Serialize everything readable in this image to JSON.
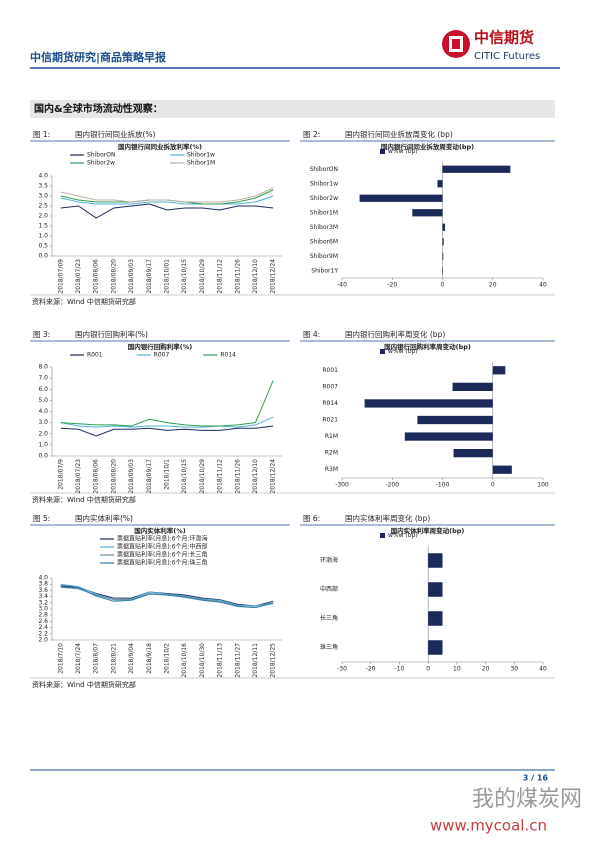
{
  "header": {
    "title": "中信期货研究|商品策略早报",
    "logo_cn": "中信期货",
    "logo_en": "CITIC Futures"
  },
  "section_title": "国内&全球市场流动性观察：",
  "sources": [
    "资料来源：Wind  中信期货研究部",
    "资料来源：Wind  中信期货研究部",
    "资料来源：Wind  中信期货研究部"
  ],
  "page_number": "3 / 16",
  "watermark": {
    "name": "我的煤炭网",
    "url": "www.mycoal.cn"
  },
  "chart_data": [
    {
      "type": "line",
      "figure": "图 1:",
      "caption": "国内银行间同业拆放(%)",
      "title": "国内银行间同业拆放利率(%)",
      "categories": [
        "2018/07/09",
        "2018/07/23",
        "2018/08/06",
        "2018/08/20",
        "2018/09/03",
        "2018/09/17",
        "2018/10/01",
        "2018/10/15",
        "2018/10/29",
        "2018/11/12",
        "2018/11/26",
        "2018/12/10",
        "2018/12/24"
      ],
      "series": [
        {
          "name": "ShiborON",
          "color": "#1c2a5b",
          "values": [
            2.4,
            2.5,
            1.9,
            2.4,
            2.5,
            2.6,
            2.3,
            2.4,
            2.4,
            2.3,
            2.5,
            2.5,
            2.4
          ]
        },
        {
          "name": "Shibor1w",
          "color": "#4fb3d9",
          "values": [
            2.9,
            2.7,
            2.6,
            2.6,
            2.6,
            2.7,
            2.7,
            2.6,
            2.6,
            2.6,
            2.6,
            2.7,
            3.0
          ]
        },
        {
          "name": "Shibor2w",
          "color": "#2e9e4f",
          "values": [
            3.0,
            2.8,
            2.7,
            2.7,
            2.7,
            2.8,
            2.8,
            2.7,
            2.6,
            2.6,
            2.7,
            2.9,
            3.3
          ]
        },
        {
          "name": "Shibor1M",
          "color": "#b8b0a0",
          "values": [
            3.2,
            3.0,
            2.8,
            2.8,
            2.7,
            2.8,
            2.8,
            2.7,
            2.7,
            2.7,
            2.8,
            3.0,
            3.4
          ]
        }
      ],
      "ylim": [
        0,
        4
      ],
      "yticks": [
        {
          "value": 0,
          "label": "0.0"
        },
        0.5,
        {
          "value": 1,
          "label": "1.0"
        },
        1.5,
        {
          "value": 2,
          "label": "2.0"
        },
        2.5,
        {
          "value": 3,
          "label": "3.0"
        },
        3.5,
        {
          "value": 4,
          "label": "4.0"
        }
      ]
    },
    {
      "type": "bar",
      "horizontal": true,
      "figure": "图 2:",
      "caption": "国内银行间同业拆放周变化 (bp)",
      "title": "国内银行间同业拆放周变动(bp)",
      "legend": "w%w (bp)",
      "color": "#1c2a5b",
      "categories": [
        "ShiborON",
        "Shibor1w",
        "Shibor2w",
        "Shibor1M",
        "Shibor3M",
        "Shibor6M",
        "Shibor9M",
        "Shibor1Y"
      ],
      "values": [
        27,
        -2,
        -33,
        -12,
        1,
        0.5,
        0.3,
        0.2
      ],
      "xlim": [
        -40,
        40
      ],
      "xticks": [
        -40,
        -20,
        0,
        20,
        40
      ]
    },
    {
      "type": "line",
      "figure": "图 3:",
      "caption": "国内银行回购利率(%)",
      "title": "国内银行回购利率(%)",
      "categories": [
        "2018/07/9",
        "2018/07/23",
        "2018/08/06",
        "2018/08/20",
        "2018/09/03",
        "2018/09/17",
        "2018/10/1",
        "2018/10/15",
        "2018/10/29",
        "2018/11/12",
        "2018/11/26",
        "2018/12/10",
        "2018/12/24"
      ],
      "series": [
        {
          "name": "R001",
          "color": "#1c2a5b",
          "values": [
            2.5,
            2.4,
            1.8,
            2.4,
            2.4,
            2.5,
            2.3,
            2.4,
            2.3,
            2.3,
            2.5,
            2.5,
            2.7
          ]
        },
        {
          "name": "R007",
          "color": "#4fb3d9",
          "values": [
            3.0,
            2.7,
            2.6,
            2.7,
            2.6,
            2.7,
            2.7,
            2.6,
            2.6,
            2.7,
            2.6,
            2.8,
            3.5
          ]
        },
        {
          "name": "R014",
          "color": "#2e9e4f",
          "values": [
            3.0,
            2.9,
            2.8,
            2.8,
            2.7,
            3.3,
            3.0,
            2.8,
            2.7,
            2.7,
            2.8,
            3.0,
            6.8
          ]
        }
      ],
      "ylim": [
        0,
        8
      ],
      "yticks": [
        {
          "value": 0,
          "label": "0.0"
        },
        {
          "value": 1,
          "label": "1.0"
        },
        {
          "value": 2,
          "label": "2.0"
        },
        {
          "value": 3,
          "label": "3.0"
        },
        {
          "value": 4,
          "label": "4.0"
        },
        {
          "value": 5,
          "label": "5.0"
        },
        {
          "value": 6,
          "label": "6.0"
        },
        {
          "value": 7,
          "label": "7.0"
        },
        {
          "value": 8,
          "label": "8.0"
        }
      ]
    },
    {
      "type": "bar",
      "horizontal": true,
      "figure": "图 4:",
      "caption": "国内银行回购利率周变化 (bp)",
      "title": "国内银行回购利率周变动(bp)",
      "legend": "w%w (bp)",
      "color": "#1c2a5b",
      "categories": [
        "R001",
        "R007",
        "R014",
        "R021",
        "R1M",
        "R2M",
        "R3M"
      ],
      "values": [
        25,
        -80,
        -255,
        -150,
        -175,
        -78,
        38
      ],
      "xlim": [
        -300,
        100
      ],
      "xticks": [
        -300,
        -200,
        -100,
        0,
        100
      ]
    },
    {
      "type": "line",
      "figure": "图 5:",
      "caption": "国内实体利率(%)",
      "title": "国内实体利率(%)",
      "categories": [
        "2018/7/10",
        "2018/7/24",
        "2018/8/07",
        "2018/8/21",
        "2018/9/04",
        "2018/9/18",
        "2018/10/2",
        "2018/10/16",
        "2018/10/30",
        "2018/11/13",
        "2018/11/27",
        "2018/12/11",
        "2018/12/25"
      ],
      "series": [
        {
          "name": "票据直贴利率(月息):6个月:环渤海",
          "color": "#1c2a5b",
          "values": [
            3.75,
            3.7,
            3.5,
            3.35,
            3.35,
            3.55,
            3.5,
            3.45,
            3.35,
            3.3,
            3.15,
            3.1,
            3.25
          ]
        },
        {
          "name": "票据直贴利率(月息):6个月:中西部",
          "color": "#4fb3d9",
          "values": [
            3.8,
            3.72,
            3.48,
            3.3,
            3.32,
            3.55,
            3.48,
            3.42,
            3.32,
            3.28,
            3.12,
            3.1,
            3.2
          ]
        },
        {
          "name": "票据直贴利率(月息):6个月:长三角",
          "color": "#6c8ea0",
          "values": [
            3.7,
            3.65,
            3.45,
            3.3,
            3.3,
            3.5,
            3.45,
            3.4,
            3.3,
            3.25,
            3.1,
            3.05,
            3.2
          ]
        },
        {
          "name": "票据直贴利率(月息):6个月:珠三角",
          "color": "#2a7fa8",
          "values": [
            3.72,
            3.68,
            3.42,
            3.25,
            3.28,
            3.48,
            3.45,
            3.38,
            3.28,
            3.22,
            3.08,
            3.05,
            3.18
          ]
        }
      ],
      "ylim": [
        2,
        4
      ],
      "yticks": [
        {
          "value": 2,
          "label": "2.0"
        },
        2.2,
        2.4,
        2.6,
        2.8,
        {
          "value": 3,
          "label": "3.0"
        },
        3.2,
        3.4,
        3.6,
        3.8,
        {
          "value": 4,
          "label": "4.0"
        }
      ]
    },
    {
      "type": "bar",
      "horizontal": true,
      "figure": "图 6:",
      "caption": "国内实体利率周变化 (bp)",
      "title": "国内实体利率周变动(bp)",
      "legend": "w%w (bp)",
      "color": "#1c2a5b",
      "categories": [
        "环渤海",
        "中西部",
        "长三角",
        "珠三角"
      ],
      "values": [
        5,
        5,
        5,
        5
      ],
      "xlim": [
        -30,
        40
      ],
      "xticks": [
        -30,
        -20,
        -10,
        0,
        10,
        20,
        30,
        40
      ]
    }
  ]
}
